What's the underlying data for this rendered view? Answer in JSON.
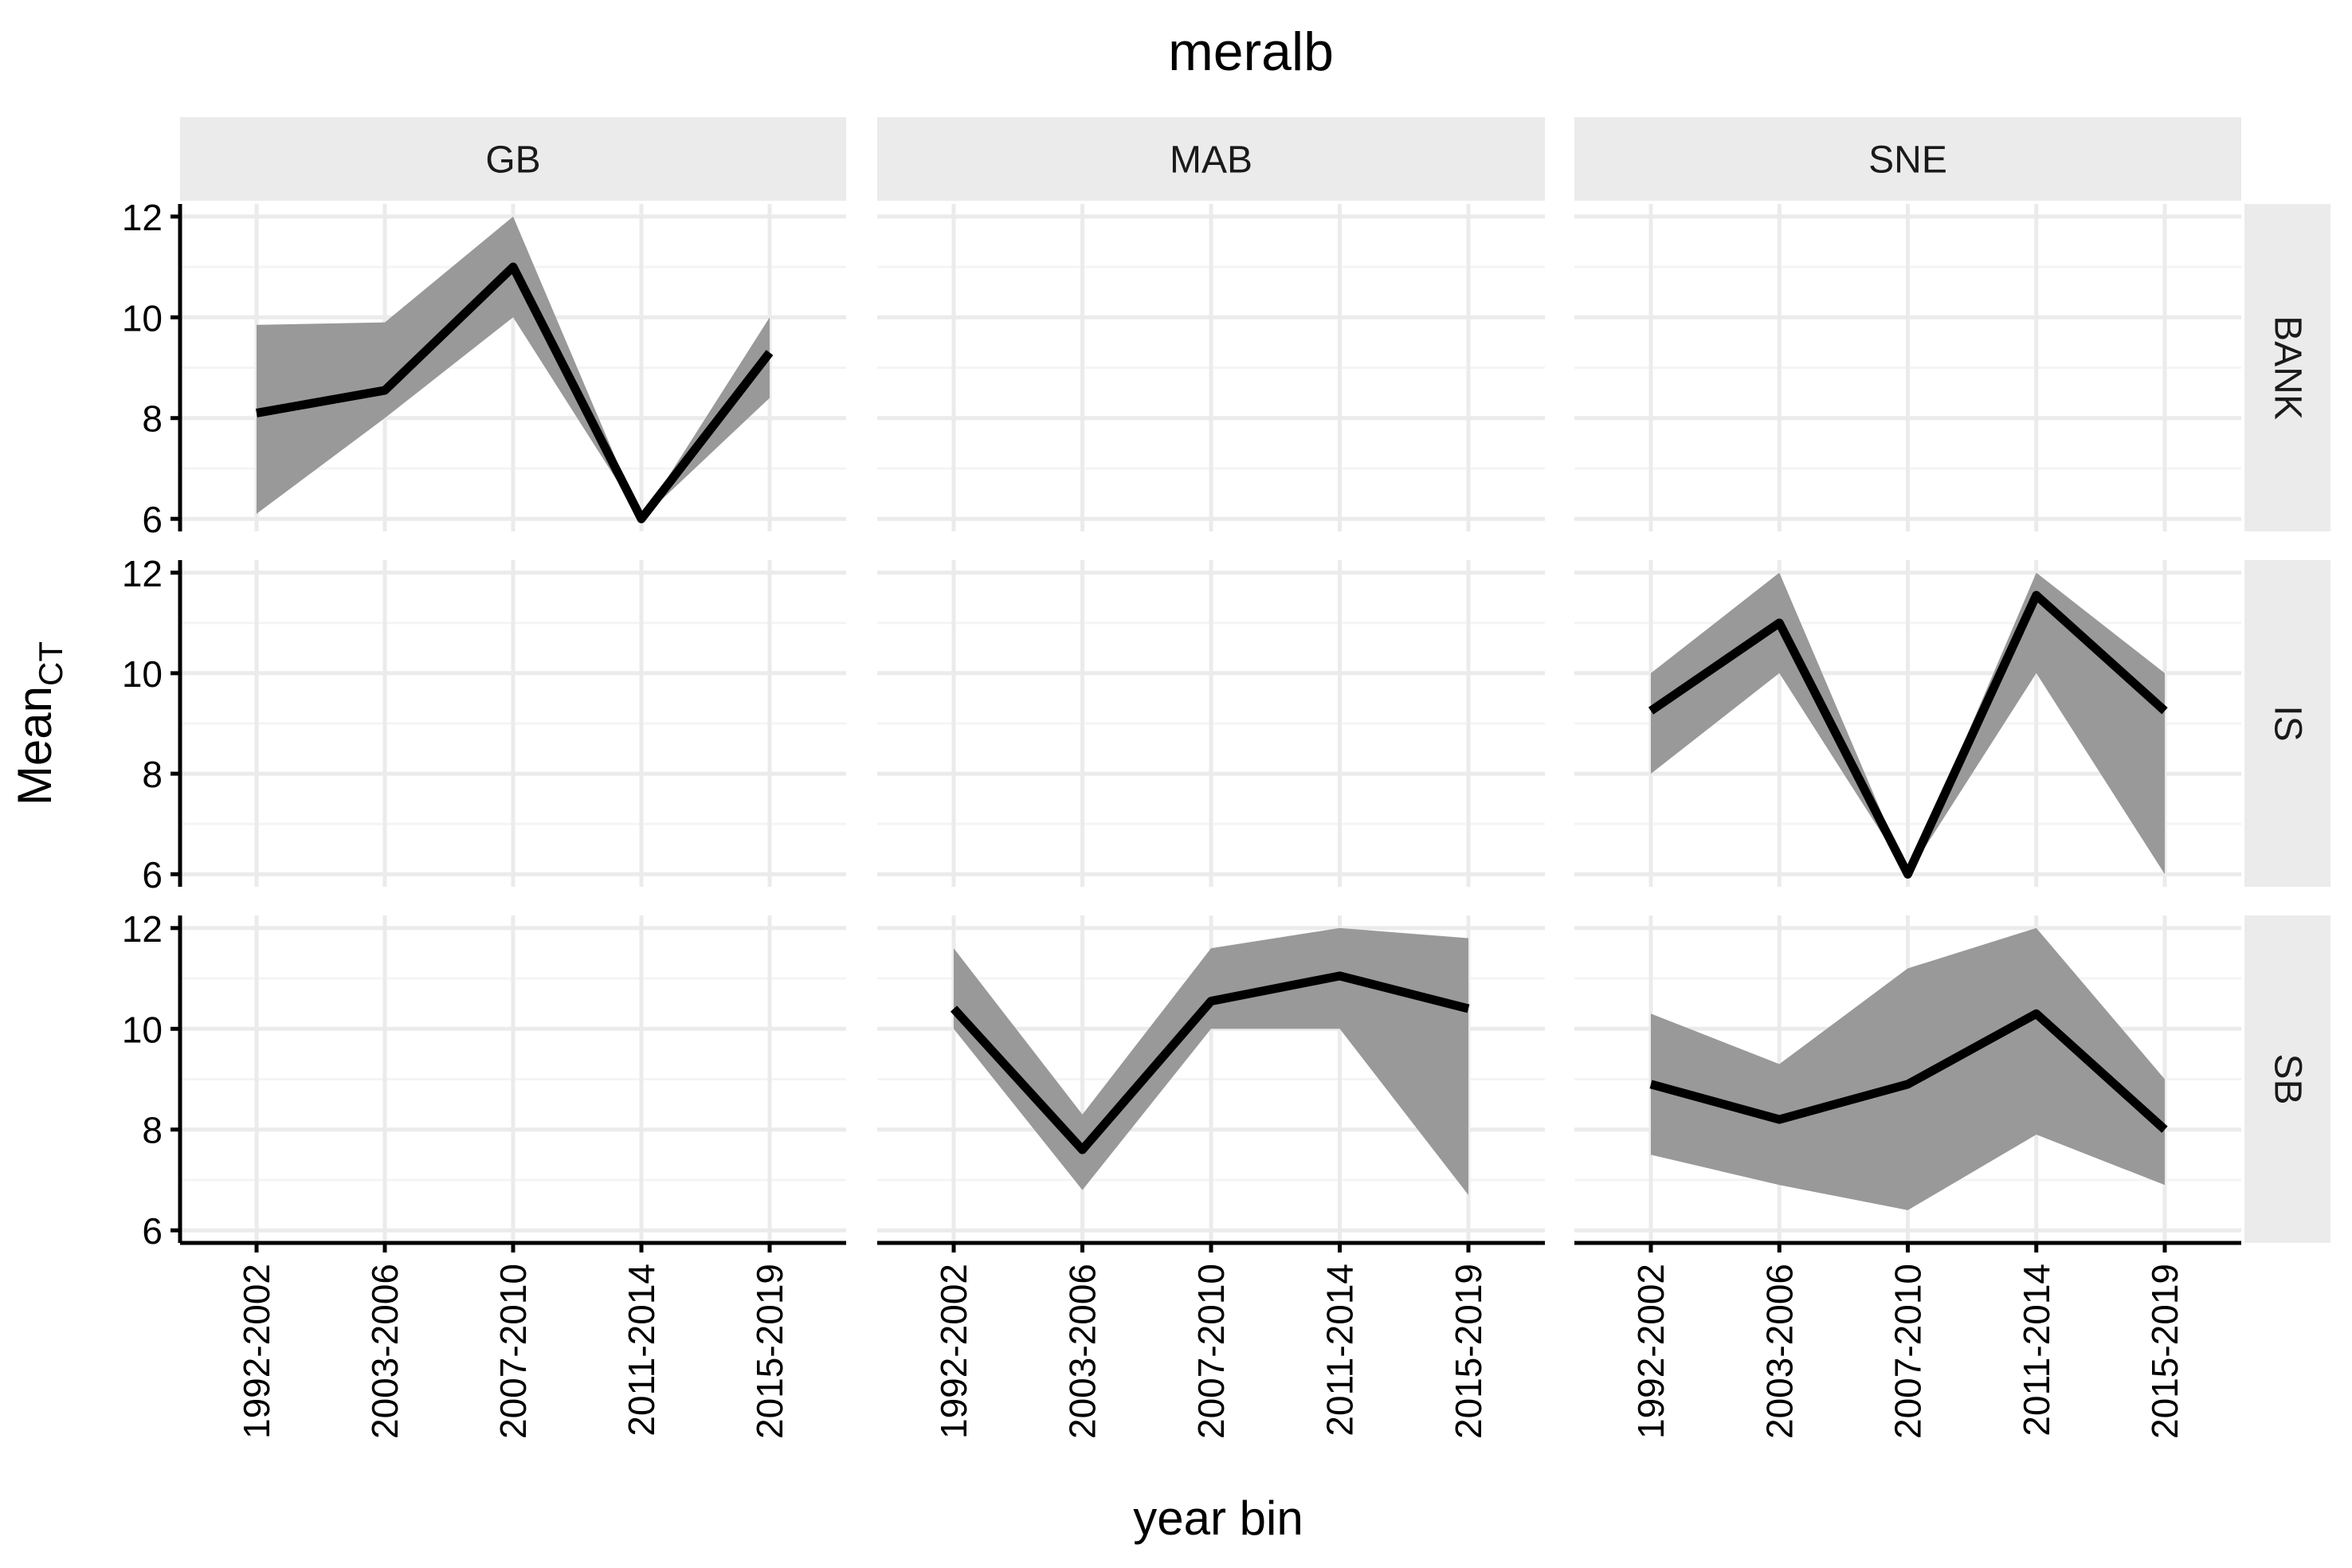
{
  "chart_data": {
    "type": "line",
    "title": "meralb",
    "xlabel": "year bin",
    "ylabel": "Mean",
    "ylabel_subscript": "CT",
    "categories": [
      "1992-2002",
      "2003-2006",
      "2007-2010",
      "2011-2014",
      "2015-2019"
    ],
    "y_ticks": [
      6,
      8,
      10,
      12
    ],
    "ylim": [
      5.75,
      12.25
    ],
    "grid": true,
    "columns": [
      "GB",
      "MAB",
      "SNE"
    ],
    "rows": [
      "BANK",
      "IS",
      "SB"
    ],
    "panels": [
      {
        "column": "GB",
        "row": "BANK",
        "series": [
          {
            "mean": [
              8.1,
              8.55,
              11.0,
              6.0,
              9.3
            ],
            "lower": [
              6.1,
              8.0,
              10.0,
              6.0,
              8.4
            ],
            "upper": [
              9.85,
              9.9,
              12.0,
              6.0,
              10.0
            ]
          }
        ]
      },
      {
        "column": "MAB",
        "row": "BANK",
        "series": []
      },
      {
        "column": "SNE",
        "row": "BANK",
        "series": []
      },
      {
        "column": "GB",
        "row": "IS",
        "series": []
      },
      {
        "column": "MAB",
        "row": "IS",
        "series": []
      },
      {
        "column": "SNE",
        "row": "IS",
        "series": [
          {
            "mean": [
              9.25,
              11.0,
              6.0,
              11.55,
              9.25
            ],
            "lower": [
              8.0,
              10.0,
              6.0,
              10.0,
              6.0
            ],
            "upper": [
              10.0,
              12.0,
              6.0,
              12.0,
              10.0
            ]
          }
        ]
      },
      {
        "column": "GB",
        "row": "SB",
        "series": []
      },
      {
        "column": "MAB",
        "row": "SB",
        "series": [
          {
            "mean": [
              10.4,
              7.6,
              10.55,
              11.05,
              10.4
            ],
            "lower": [
              10.0,
              6.8,
              10.0,
              10.0,
              6.7
            ],
            "upper": [
              11.6,
              8.3,
              11.6,
              12.0,
              11.8
            ]
          }
        ]
      },
      {
        "column": "SNE",
        "row": "SB",
        "series": [
          {
            "mean": [
              8.9,
              8.2,
              8.9,
              10.3,
              8.0
            ],
            "lower": [
              7.5,
              6.9,
              6.4,
              7.9,
              6.9
            ],
            "upper": [
              10.3,
              9.3,
              11.2,
              12.0,
              9.0
            ]
          }
        ]
      }
    ]
  }
}
